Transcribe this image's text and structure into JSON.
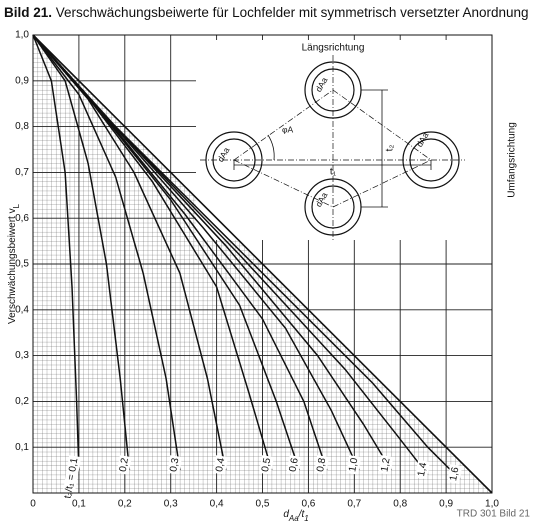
{
  "chart_data": {
    "type": "line",
    "title": {
      "number": "Bild 21.",
      "text": "Verschwächungsbeiwerte für Lochfelder mit symmetrisch versetzter Anordnung"
    },
    "y_label": {
      "main": "Verschwächungsbeiwert v",
      "sub": "L"
    },
    "x_label": {
      "parts": [
        "d",
        "Aa",
        "/t",
        "1"
      ]
    },
    "footer": "TRD 301 Bild 21",
    "xlim": [
      0,
      1
    ],
    "ylim": [
      0,
      1
    ],
    "xticks": [
      0,
      {
        "value": 0.1,
        "label": "0,1"
      },
      {
        "value": 0.2,
        "label": "0,2"
      },
      {
        "value": 0.3,
        "label": "0,3"
      },
      {
        "value": 0.4,
        "label": "0,4"
      },
      {
        "value": 0.5,
        "label": "0,5"
      },
      {
        "value": 0.6,
        "label": "0,6"
      },
      {
        "value": 0.7,
        "label": "0,7"
      },
      {
        "value": 0.8,
        "label": "0,8"
      },
      {
        "value": 0.9,
        "label": "0,9"
      },
      {
        "value": 1,
        "label": "1,0"
      }
    ],
    "yticks": [
      {
        "value": 0.1,
        "label": "0,1"
      },
      {
        "value": 0.2,
        "label": "0,2"
      },
      {
        "value": 0.3,
        "label": "0,3"
      },
      {
        "value": 0.4,
        "label": "0,4"
      },
      {
        "value": 0.5,
        "label": "0,5"
      },
      {
        "value": 0.6,
        "label": "0,6"
      },
      {
        "value": 0.7,
        "label": "0,7"
      },
      {
        "value": 0.8,
        "label": "0,8"
      },
      {
        "value": 0.9,
        "label": "0,9"
      },
      {
        "value": 1,
        "label": "1,0"
      }
    ],
    "grid": true,
    "limit_line": {
      "x": [
        0,
        1
      ],
      "values": [
        1,
        0
      ],
      "color": "#111"
    },
    "series": [
      {
        "name": "t₂/t₁ = 0,1",
        "color": "#111",
        "x": [
          0,
          0.04,
          0.07,
          0.085,
          0.095,
          0.1
        ],
        "values": [
          1,
          0.9,
          0.7,
          0.45,
          0.2,
          0.05
        ]
      },
      {
        "name": "0,2",
        "color": "#111",
        "x": [
          0,
          0.07,
          0.12,
          0.16,
          0.19,
          0.21
        ],
        "values": [
          1,
          0.9,
          0.72,
          0.5,
          0.25,
          0.05
        ]
      },
      {
        "name": "0,3",
        "color": "#111",
        "x": [
          0,
          0.1,
          0.18,
          0.24,
          0.29,
          0.32
        ],
        "values": [
          1,
          0.87,
          0.69,
          0.48,
          0.25,
          0.05
        ]
      },
      {
        "name": "0,4",
        "color": "#111",
        "x": [
          0,
          0.12,
          0.22,
          0.32,
          0.38,
          0.42
        ],
        "values": [
          1,
          0.86,
          0.7,
          0.48,
          0.25,
          0.05
        ]
      },
      {
        "name": "0,5",
        "color": "#111",
        "x": [
          0,
          0.13,
          0.26,
          0.4,
          0.47,
          0.52
        ],
        "values": [
          1,
          0.85,
          0.68,
          0.45,
          0.22,
          0.05
        ]
      },
      {
        "name": "0,6",
        "color": "#111",
        "x": [
          0,
          0.14,
          0.3,
          0.45,
          0.53,
          0.58
        ],
        "values": [
          1,
          0.84,
          0.64,
          0.41,
          0.2,
          0.05
        ]
      },
      {
        "name": "0,8",
        "color": "#111",
        "x": [
          0,
          0.15,
          0.33,
          0.5,
          0.59,
          0.64
        ],
        "values": [
          1,
          0.83,
          0.61,
          0.38,
          0.2,
          0.05
        ]
      },
      {
        "name": "1,0",
        "color": "#111",
        "x": [
          0,
          0.16,
          0.37,
          0.55,
          0.65,
          0.71
        ],
        "values": [
          1,
          0.82,
          0.58,
          0.36,
          0.18,
          0.05
        ]
      },
      {
        "name": "1,2",
        "color": "#111",
        "x": [
          0,
          0.17,
          0.42,
          0.62,
          0.72,
          0.78
        ],
        "values": [
          1,
          0.81,
          0.54,
          0.3,
          0.15,
          0.05
        ]
      },
      {
        "name": "1,4",
        "color": "#111",
        "x": [
          0,
          0.17,
          0.45,
          0.68,
          0.79,
          0.86
        ],
        "values": [
          1,
          0.81,
          0.52,
          0.27,
          0.13,
          0.04
        ]
      },
      {
        "name": "1,6",
        "color": "#111",
        "x": [
          0,
          0.18,
          0.5,
          0.74,
          0.86,
          0.93
        ],
        "values": [
          1,
          0.8,
          0.48,
          0.24,
          0.1,
          0.03
        ]
      }
    ],
    "inset": {
      "longitudinal": "Längsrichtung",
      "circumferential": "Umfangsrichtung",
      "diameter": "dAa",
      "angle": "φA",
      "pitch_1": "t₁",
      "pitch_2": "t₂"
    }
  }
}
